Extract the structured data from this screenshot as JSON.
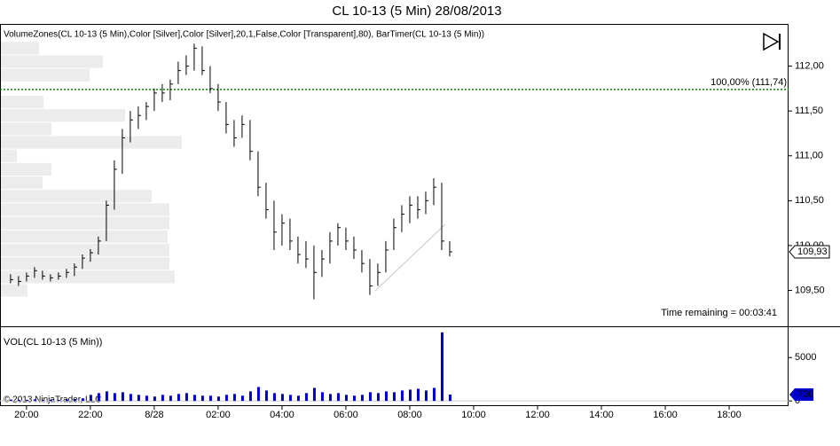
{
  "chart_data": [
    {
      "type": "ohlc",
      "title": "CL 10-13 (5 Min)  28/08/2013",
      "indicator_label": "VolumeZones(CL 10-13 (5 Min),Color [Silver],Color [Silver],20,1,False,Color [Transparent],80), BarTimer(CL 10-13 (5 Min))",
      "annotation": "Time remaining = 00:03:41",
      "color": "#000000",
      "x": [
        19.5,
        19.75,
        20,
        20.25,
        20.5,
        20.75,
        21,
        21.25,
        21.5,
        21.75,
        22,
        22.25,
        22.5,
        22.75,
        23,
        23.25,
        23.5,
        23.75,
        24,
        24.25,
        24.5,
        24.75,
        25,
        25.25,
        25.5,
        25.75,
        26,
        26.25,
        26.5,
        26.75,
        27,
        27.25,
        27.5,
        27.75,
        28,
        28.25,
        28.5,
        28.75,
        29,
        29.25,
        29.5,
        29.75,
        30,
        30.25,
        30.5,
        30.75,
        31,
        31.25,
        31.5,
        31.75,
        32,
        32.25,
        32.5,
        32.75,
        33,
        33.25
      ],
      "high": [
        109.68,
        109.66,
        109.7,
        109.76,
        109.72,
        109.68,
        109.7,
        109.74,
        109.8,
        109.9,
        109.96,
        110.1,
        110.5,
        110.95,
        111.3,
        111.5,
        111.55,
        111.6,
        111.75,
        111.8,
        111.85,
        112.05,
        112.12,
        112.25,
        112.22,
        112.0,
        111.8,
        111.6,
        111.4,
        111.45,
        111.4,
        111.05,
        110.7,
        110.5,
        110.35,
        110.3,
        110.1,
        110.05,
        110.0,
        109.95,
        110.15,
        110.25,
        110.2,
        110.1,
        109.95,
        109.85,
        109.8,
        110.05,
        110.3,
        110.45,
        110.55,
        110.55,
        110.6,
        110.75,
        110.7,
        110.05
      ],
      "low": [
        109.58,
        109.55,
        109.6,
        109.64,
        109.62,
        109.6,
        109.62,
        109.64,
        109.66,
        109.74,
        109.82,
        109.9,
        110.05,
        110.4,
        110.8,
        111.15,
        111.3,
        111.4,
        111.5,
        111.6,
        111.62,
        111.8,
        111.9,
        111.95,
        111.9,
        111.7,
        111.5,
        111.25,
        111.1,
        111.2,
        110.95,
        110.55,
        110.3,
        109.95,
        110.0,
        109.95,
        109.8,
        109.75,
        109.4,
        109.65,
        109.8,
        110.0,
        109.95,
        109.85,
        109.7,
        109.45,
        109.55,
        109.7,
        109.95,
        110.15,
        110.25,
        110.3,
        110.35,
        110.45,
        109.95,
        109.88
      ],
      "close": [
        109.62,
        109.6,
        109.66,
        109.72,
        109.66,
        109.64,
        109.66,
        109.7,
        109.76,
        109.86,
        109.92,
        110.05,
        110.45,
        110.85,
        111.2,
        111.4,
        111.45,
        111.55,
        111.7,
        111.7,
        111.8,
        111.95,
        112.0,
        112.2,
        111.95,
        111.75,
        111.6,
        111.35,
        111.2,
        111.35,
        111.05,
        110.65,
        110.4,
        110.15,
        110.25,
        110.05,
        109.9,
        109.85,
        109.7,
        109.85,
        110.05,
        110.2,
        110.05,
        109.95,
        109.8,
        109.55,
        109.7,
        109.95,
        110.2,
        110.35,
        110.45,
        110.4,
        110.5,
        110.65,
        110.05,
        109.93
      ],
      "last_price": {
        "value": 109.93,
        "label": "109,93"
      },
      "level": {
        "value": 111.74,
        "label": "100,00% (111,74)",
        "color": "#008000"
      },
      "volume_zones": {
        "color": "#ececec",
        "prices": [
          112.2,
          112.05,
          111.9,
          111.75,
          111.6,
          111.45,
          111.3,
          111.15,
          111.0,
          110.85,
          110.7,
          110.55,
          110.4,
          110.25,
          110.1,
          109.95,
          109.8,
          109.65,
          109.5
        ],
        "volumes": [
          430,
          1150,
          1000,
          0,
          480,
          1400,
          570,
          2040,
          180,
          570,
          470,
          1700,
          1900,
          1900,
          1880,
          1900,
          1900,
          1960,
          300
        ]
      },
      "xlim": [
        19.17,
        43.86
      ],
      "ylim": [
        109.1,
        112.47
      ],
      "yticks": [
        {
          "value": 109.5,
          "label": "109,50"
        },
        {
          "value": 110,
          "label": "110,00"
        },
        {
          "value": 110.5,
          "label": "110,50"
        },
        {
          "value": 111,
          "label": "111,00"
        },
        {
          "value": 111.5,
          "label": "111,50"
        },
        {
          "value": 112,
          "label": "112,00"
        }
      ]
    },
    {
      "type": "bar",
      "title": "VOL(CL 10-13 (5 Min))",
      "copyright": "© 2013 NinjaTrader, LLC",
      "color": "#0000cc",
      "x": [
        19.5,
        19.75,
        20,
        20.25,
        20.5,
        20.75,
        21,
        21.25,
        21.5,
        21.75,
        22,
        22.25,
        22.5,
        22.75,
        23,
        23.25,
        23.5,
        23.75,
        24,
        24.25,
        24.5,
        24.75,
        25,
        25.25,
        25.5,
        25.75,
        26,
        26.25,
        26.5,
        26.75,
        27,
        27.25,
        27.5,
        27.75,
        28,
        28.25,
        28.5,
        28.75,
        29,
        29.25,
        29.5,
        29.75,
        30,
        30.25,
        30.5,
        30.75,
        31,
        31.25,
        31.5,
        31.75,
        32,
        32.25,
        32.5,
        32.75,
        33,
        33.25
      ],
      "values": [
        150,
        120,
        130,
        180,
        100,
        120,
        110,
        150,
        200,
        300,
        700,
        900,
        1100,
        900,
        1000,
        800,
        700,
        600,
        500,
        700,
        600,
        800,
        900,
        700,
        600,
        600,
        500,
        700,
        800,
        600,
        1100,
        1600,
        1200,
        900,
        800,
        700,
        600,
        900,
        1500,
        1000,
        800,
        900,
        700,
        600,
        700,
        1000,
        900,
        1100,
        1000,
        1200,
        1300,
        1400,
        1200,
        1500,
        7900,
        730
      ],
      "xlim": [
        19.17,
        43.86
      ],
      "ylim": [
        -600,
        8500
      ],
      "yticks": [
        0,
        5000
      ],
      "xticks": [
        {
          "value": 20,
          "label": "20:00"
        },
        {
          "value": 22,
          "label": "22:00"
        },
        {
          "value": 24,
          "label": "8/28"
        },
        {
          "value": 26,
          "label": "02:00"
        },
        {
          "value": 28,
          "label": "04:00"
        },
        {
          "value": 30,
          "label": "06:00"
        },
        {
          "value": 32,
          "label": "08:00"
        },
        {
          "value": 34,
          "label": "10:00"
        },
        {
          "value": 36,
          "label": "12:00"
        },
        {
          "value": 38,
          "label": "14:00"
        },
        {
          "value": 40,
          "label": "16:00"
        },
        {
          "value": 42,
          "label": "18:00"
        }
      ]
    }
  ]
}
